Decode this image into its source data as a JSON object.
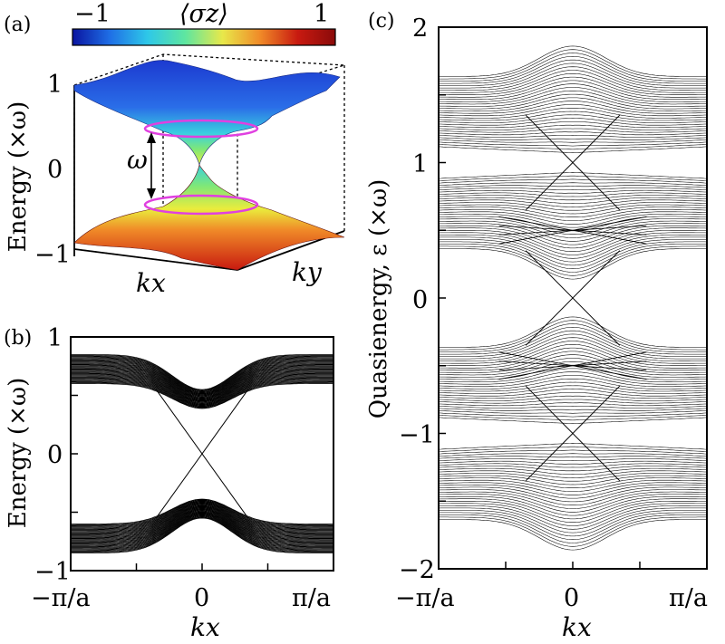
{
  "panel_labels": [
    "(a)",
    "(b)",
    "(c)"
  ],
  "colorbar": {
    "label": "⟨σz⟩",
    "min_label": "−1",
    "max_label": "1",
    "colors": [
      "#0a14a0",
      "#1f6fe6",
      "#2ec8e8",
      "#5ee6a0",
      "#e8e84a",
      "#f08a28",
      "#c81a10",
      "#8a0a0a"
    ]
  },
  "chart_data": [
    {
      "type": "surface",
      "panel": "(a)",
      "ylabel": "Energy (×ω)",
      "yticks": [
        "1",
        "0",
        "−1"
      ],
      "ylim": [
        -1,
        1
      ],
      "axis_labels": [
        "kx",
        "ky"
      ],
      "annotation": "ω",
      "bands": [
        {
          "name": "upper",
          "top": 1.0,
          "bottom_center": 0.55
        },
        {
          "name": "lower",
          "top_center": -0.55,
          "bottom": -1.0
        }
      ],
      "ring_color": "#e040e0"
    },
    {
      "type": "line",
      "panel": "(b)",
      "xlabel": "kx",
      "ylabel": "Energy (×ω)",
      "xticks": [
        "−π/a",
        "0",
        "π/a"
      ],
      "yticks": [
        "1",
        "0",
        "−1"
      ],
      "xlim": [
        -1,
        1
      ],
      "ylim": [
        -1,
        1
      ],
      "bands": [
        {
          "name": "upper bulk",
          "edge": 0.85,
          "center": 0.55
        },
        {
          "name": "lower bulk",
          "edge": -0.85,
          "center": -0.55
        }
      ],
      "edge_states": [
        {
          "x": [
            -0.35,
            0.35
          ],
          "y": [
            0.55,
            -0.55
          ]
        },
        {
          "x": [
            -0.35,
            0.35
          ],
          "y": [
            -0.55,
            0.55
          ]
        }
      ]
    },
    {
      "type": "line",
      "panel": "(c)",
      "xlabel": "kx",
      "ylabel": "Quasienergy, ε (×ω)",
      "xticks": [
        "−π/a",
        "0",
        "π/a"
      ],
      "yticks": [
        "2",
        "1",
        "0",
        "−1",
        "−2"
      ],
      "xlim": [
        -1,
        1
      ],
      "ylim": [
        -2,
        2
      ],
      "band_centers": [
        -1.5,
        -0.5,
        0.5,
        1.5
      ],
      "band_halfwidth": 0.45,
      "crossings": [
        -1,
        0,
        1
      ],
      "ribbons": [
        {
          "y_range": [
            0.4,
            0.6
          ]
        },
        {
          "y_range": [
            -0.6,
            -0.4
          ]
        }
      ]
    }
  ]
}
